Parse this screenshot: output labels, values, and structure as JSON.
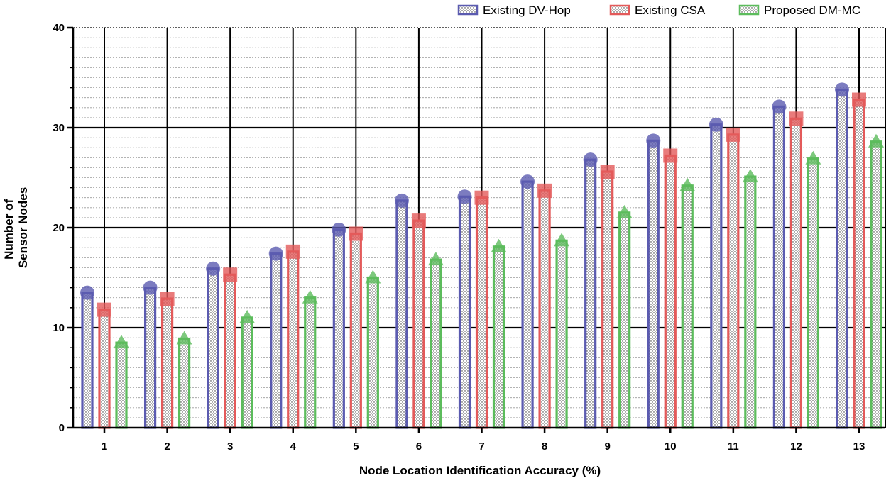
{
  "chart_data": {
    "type": "bar",
    "xlabel": "Node Location Identification Accuracy (%)",
    "ylabel_lines": [
      "Number of",
      "Sensor Nodes"
    ],
    "categories": [
      "1",
      "2",
      "3",
      "4",
      "5",
      "6",
      "7",
      "8",
      "9",
      "10",
      "11",
      "12",
      "13"
    ],
    "ylim": [
      0,
      40
    ],
    "yticks": [
      "0",
      "10",
      "20",
      "30",
      "40"
    ],
    "grid": "on",
    "legend_position": "top-right",
    "series": [
      {
        "name": "Existing DV-Hop",
        "color": "#5b5bb0",
        "marker": "circle",
        "values": [
          13.5,
          14.0,
          15.9,
          17.4,
          19.8,
          22.7,
          23.1,
          24.6,
          26.8,
          28.7,
          30.3,
          32.1,
          33.8
        ]
      },
      {
        "name": "Existing CSA",
        "color": "#e35a5a",
        "marker": "square",
        "values": [
          11.8,
          12.9,
          15.3,
          17.6,
          19.4,
          20.7,
          23.0,
          23.7,
          25.6,
          27.2,
          29.3,
          30.9,
          32.8
        ]
      },
      {
        "name": "Proposed DM-MC",
        "color": "#5cbc5c",
        "marker": "triangle",
        "values": [
          8.5,
          8.9,
          11.0,
          13.0,
          15.0,
          16.8,
          18.1,
          18.7,
          21.5,
          24.2,
          25.1,
          26.9,
          28.6
        ]
      }
    ]
  }
}
